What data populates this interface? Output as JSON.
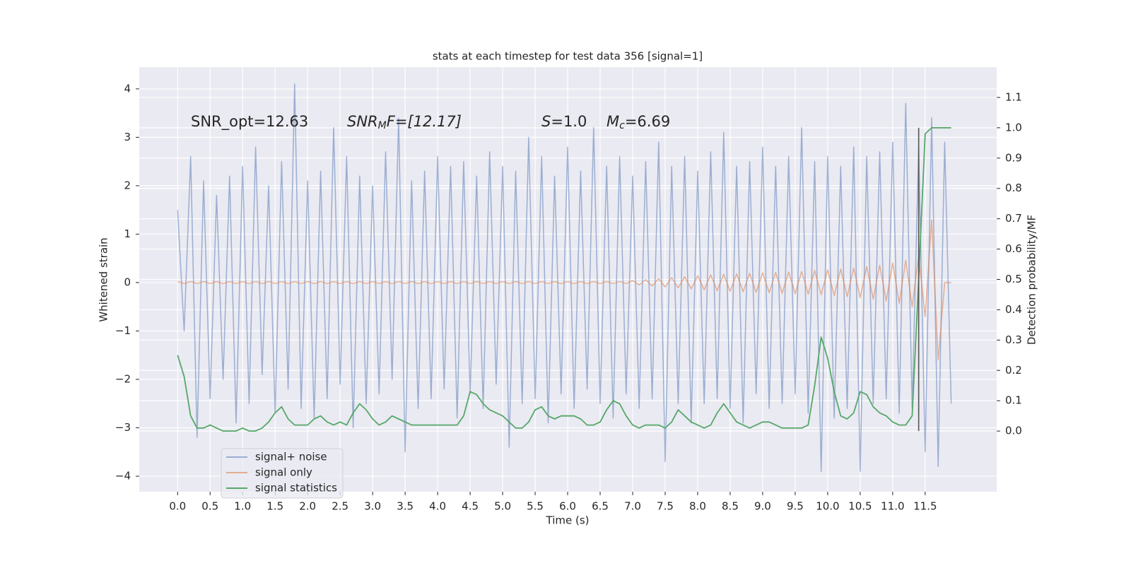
{
  "chart_data": {
    "type": "line",
    "title": "stats at each timestep for test data 356 [signal=1]",
    "xlabel": "Time (s)",
    "ylabel": "Whitened strain",
    "y2label": "Detection probability/MF",
    "annotations": [
      {
        "main": "SNR_opt=12.63"
      },
      {
        "main": "SNR",
        "sub": "M",
        "after": "F=[12.17]"
      },
      {
        "main": "S",
        "after": "=1.0"
      },
      {
        "main": "M",
        "sub": "c",
        "after": "=6.69"
      }
    ],
    "vline": 11.4,
    "grid": true,
    "legend": "lower left",
    "xlim": [
      -0.59,
      12.6
    ],
    "ylim": [
      -4.32,
      4.45
    ],
    "y2lim": [
      -0.2,
      1.2
    ],
    "xticks": [
      {
        "value": 0,
        "label": "0.0"
      },
      0.5,
      {
        "value": 1,
        "label": "1.0"
      },
      1.5,
      {
        "value": 2,
        "label": "2.0"
      },
      2.5,
      {
        "value": 3,
        "label": "3.0"
      },
      3.5,
      {
        "value": 4,
        "label": "4.0"
      },
      4.5,
      {
        "value": 5,
        "label": "5.0"
      },
      5.5,
      {
        "value": 6,
        "label": "6.0"
      },
      6.5,
      {
        "value": 7,
        "label": "7.0"
      },
      7.5,
      {
        "value": 8,
        "label": "8.0"
      },
      8.5,
      {
        "value": 9,
        "label": "9.0"
      },
      9.5,
      {
        "value": 10,
        "label": "10.0"
      },
      10.5,
      {
        "value": 11,
        "label": "11.0"
      },
      11.5
    ],
    "yticks": [
      {
        "value": -4,
        "label": "−4"
      },
      {
        "value": -3,
        "label": "−3"
      },
      {
        "value": -2,
        "label": "−2"
      },
      {
        "value": -1,
        "label": "−1"
      },
      0,
      1,
      2,
      3,
      4
    ],
    "y2ticks": [
      {
        "value": 0,
        "label": "0.0"
      },
      0.1,
      0.2,
      0.3,
      0.4,
      0.5,
      0.6,
      0.7,
      0.8,
      0.9,
      {
        "value": 1,
        "label": "1.0"
      },
      1.1
    ],
    "x": [
      0,
      0.1,
      0.2,
      0.3,
      0.4,
      0.5,
      0.6,
      0.7,
      0.8,
      0.9,
      1,
      1.1,
      1.2,
      1.3,
      1.4,
      1.5,
      1.6,
      1.7,
      1.8,
      1.9,
      2,
      2.1,
      2.2,
      2.3,
      2.4,
      2.5,
      2.6,
      2.7,
      2.8,
      2.9,
      3,
      3.1,
      3.2,
      3.3,
      3.4,
      3.5,
      3.6,
      3.7,
      3.8,
      3.9,
      4,
      4.1,
      4.2,
      4.3,
      4.4,
      4.5,
      4.6,
      4.7,
      4.8,
      4.9,
      5,
      5.1,
      5.2,
      5.3,
      5.4,
      5.5,
      5.6,
      5.7,
      5.8,
      5.9,
      6,
      6.1,
      6.2,
      6.3,
      6.4,
      6.5,
      6.6,
      6.7,
      6.8,
      6.9,
      7,
      7.1,
      7.2,
      7.3,
      7.4,
      7.5,
      7.6,
      7.7,
      7.8,
      7.9,
      8,
      8.1,
      8.2,
      8.3,
      8.4,
      8.5,
      8.6,
      8.7,
      8.8,
      8.9,
      9,
      9.1,
      9.2,
      9.3,
      9.4,
      9.5,
      9.6,
      9.7,
      9.8,
      9.9,
      10,
      10.1,
      10.2,
      10.3,
      10.4,
      10.5,
      10.6,
      10.7,
      10.8,
      10.9,
      11,
      11.1,
      11.2,
      11.3,
      11.4,
      11.5,
      11.6,
      11.7,
      11.8,
      11.9
    ],
    "series": [
      {
        "name": "signal+ noise",
        "color": "#4c72b0",
        "alpha": 0.5,
        "values": [
          1.5,
          -1,
          2.6,
          -3.2,
          2.1,
          -2.4,
          1.8,
          -2.0,
          2.2,
          -2.9,
          2.4,
          -2.5,
          2.8,
          -1.9,
          2.0,
          -2.7,
          2.5,
          -2.2,
          4.1,
          -2.6,
          2.1,
          -2.8,
          2.3,
          -2.4,
          3.2,
          -2.1,
          2.6,
          -3.0,
          2.2,
          -2.5,
          2.0,
          -2.3,
          2.7,
          -2.0,
          3.4,
          -3.5,
          2.1,
          -2.6,
          2.3,
          -2.4,
          2.6,
          -2.2,
          2.4,
          -2.8,
          2.5,
          -2.3,
          2.2,
          -2.6,
          2.7,
          -2.1,
          2.4,
          -3.4,
          2.3,
          -2.5,
          3.0,
          -2.4,
          2.6,
          -2.9,
          2.2,
          -2.3,
          2.8,
          -2.6,
          2.3,
          -2.2,
          3.2,
          -2.5,
          2.4,
          -2.8,
          2.6,
          -2.3,
          2.2,
          -2.6,
          2.5,
          -2.4,
          2.9,
          -3.7,
          2.4,
          -2.5,
          2.6,
          -2.9,
          2.3,
          -2.5,
          2.7,
          -2.4,
          3.1,
          -2.6,
          2.4,
          -2.9,
          2.5,
          -2.3,
          2.8,
          -2.6,
          2.4,
          -2.5,
          2.6,
          -2.3,
          3.2,
          -2.7,
          2.5,
          -3.9,
          2.6,
          -2.8,
          2.4,
          -2.6,
          2.8,
          -3.9,
          2.6,
          -2.5,
          2.7,
          -2.4,
          2.9,
          -2.7,
          3.7,
          -2.6,
          2.8,
          -3.5,
          3.4,
          -3.8,
          2.9,
          -2.5
        ]
      },
      {
        "name": "signal only",
        "color": "#dd8452",
        "alpha": 0.6,
        "values": [
          0.02,
          -0.02,
          0.02,
          -0.02,
          0.02,
          -0.02,
          0.02,
          -0.02,
          0.02,
          -0.02,
          0.02,
          -0.02,
          0.02,
          -0.02,
          0.02,
          -0.02,
          0.02,
          -0.02,
          0.02,
          -0.02,
          0.02,
          -0.02,
          0.02,
          -0.02,
          0.02,
          -0.02,
          0.02,
          -0.02,
          0.02,
          -0.02,
          0.02,
          -0.02,
          0.02,
          -0.02,
          0.02,
          -0.02,
          0.02,
          -0.02,
          0.02,
          -0.02,
          0.02,
          -0.02,
          0.02,
          -0.02,
          0.02,
          -0.02,
          0.02,
          -0.02,
          0.02,
          -0.02,
          0.02,
          -0.02,
          0.02,
          -0.02,
          0.02,
          -0.02,
          0.02,
          -0.02,
          0.02,
          -0.02,
          0.02,
          -0.02,
          0.02,
          -0.02,
          0.02,
          -0.02,
          0.02,
          -0.02,
          0.02,
          -0.02,
          0.04,
          -0.05,
          0.06,
          -0.07,
          0.08,
          -0.09,
          0.1,
          -0.11,
          0.12,
          -0.13,
          0.14,
          -0.15,
          0.16,
          -0.17,
          0.17,
          -0.18,
          0.18,
          -0.19,
          0.19,
          -0.2,
          0.2,
          -0.21,
          0.21,
          -0.22,
          0.22,
          -0.23,
          0.23,
          -0.24,
          0.25,
          -0.25,
          0.26,
          -0.27,
          0.28,
          -0.29,
          0.3,
          -0.31,
          0.33,
          -0.34,
          0.36,
          -0.38,
          0.4,
          -0.43,
          0.46,
          -0.5,
          0.55,
          -0.7,
          1.3,
          -1.6,
          0,
          0
        ]
      },
      {
        "name": "signal statistics",
        "color": "#55a868",
        "axis": "y2",
        "values": [
          0.25,
          0.18,
          0.05,
          0.01,
          0.01,
          0.02,
          0.01,
          0,
          0,
          0,
          0.01,
          0,
          0,
          0.01,
          0.03,
          0.06,
          0.08,
          0.04,
          0.02,
          0.02,
          0.02,
          0.04,
          0.05,
          0.03,
          0.02,
          0.03,
          0.02,
          0.06,
          0.09,
          0.07,
          0.04,
          0.02,
          0.03,
          0.05,
          0.04,
          0.03,
          0.02,
          0.02,
          0.02,
          0.02,
          0.02,
          0.02,
          0.02,
          0.02,
          0.05,
          0.13,
          0.12,
          0.09,
          0.07,
          0.06,
          0.05,
          0.03,
          0.01,
          0.01,
          0.03,
          0.07,
          0.08,
          0.05,
          0.04,
          0.05,
          0.05,
          0.05,
          0.04,
          0.02,
          0.02,
          0.03,
          0.07,
          0.1,
          0.09,
          0.05,
          0.02,
          0.01,
          0.02,
          0.02,
          0.02,
          0.01,
          0.03,
          0.07,
          0.05,
          0.03,
          0.02,
          0.01,
          0.02,
          0.06,
          0.09,
          0.06,
          0.03,
          0.02,
          0.01,
          0.02,
          0.03,
          0.03,
          0.02,
          0.01,
          0.01,
          0.01,
          0.01,
          0.02,
          0.15,
          0.31,
          0.24,
          0.13,
          0.05,
          0.04,
          0.06,
          0.13,
          0.12,
          0.08,
          0.06,
          0.05,
          0.03,
          0.02,
          0.02,
          0.05,
          0.5,
          0.98,
          1,
          1,
          1,
          1
        ]
      }
    ]
  }
}
